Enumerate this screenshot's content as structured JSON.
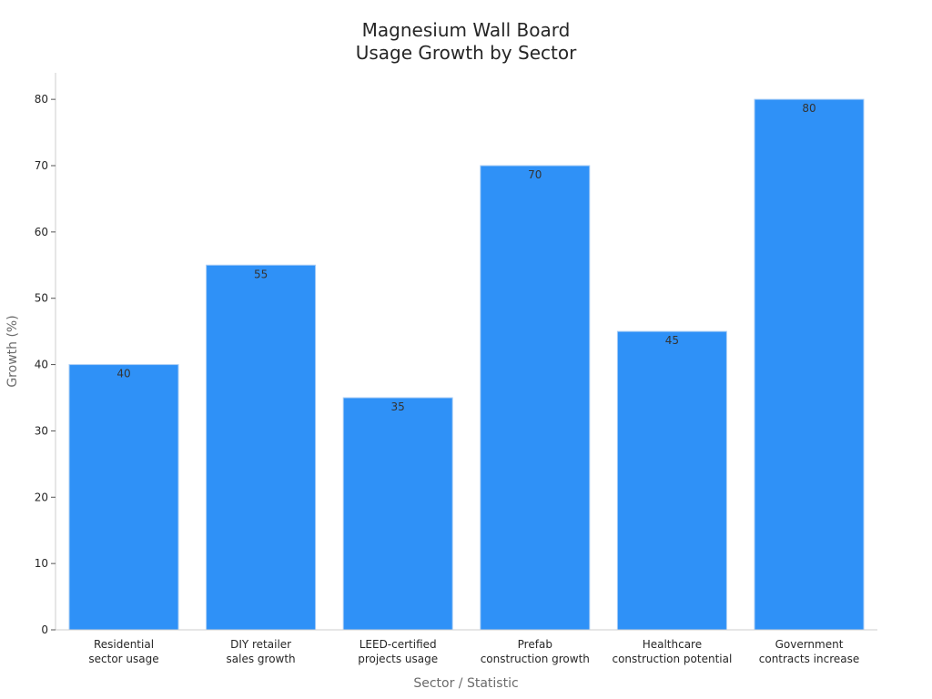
{
  "chart_data": {
    "type": "bar",
    "title_lines": [
      "Magnesium Wall Board",
      "Usage Growth by Sector"
    ],
    "xlabel": "Sector / Statistic",
    "ylabel": "Growth (%)",
    "categories": [
      [
        "Residential",
        "sector usage"
      ],
      [
        "DIY retailer",
        "sales growth"
      ],
      [
        "LEED-certified",
        "projects usage"
      ],
      [
        "Prefab",
        "construction growth"
      ],
      [
        "Healthcare",
        "construction potential"
      ],
      [
        "Government",
        "contracts increase"
      ]
    ],
    "values": [
      40,
      55,
      35,
      70,
      45,
      80
    ],
    "ylim": [
      0,
      84
    ],
    "yticks": [
      0,
      10,
      20,
      30,
      40,
      50,
      60,
      70,
      80
    ],
    "bar_color": "#2f91f7",
    "bar_edge_color": "#a9cdf5",
    "grid": false,
    "legend": false
  }
}
